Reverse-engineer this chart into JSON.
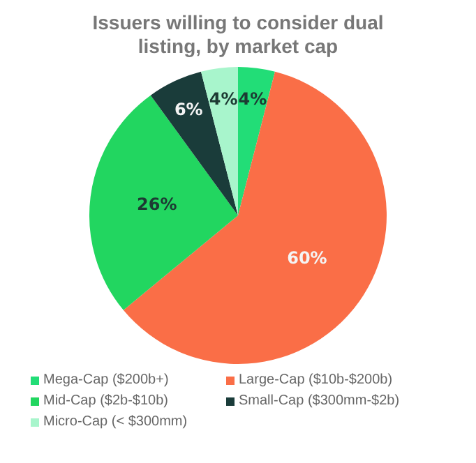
{
  "chart_data": {
    "type": "pie",
    "title": "Issuers willing to consider dual listing, by market cap",
    "categories": [
      "Mega-Cap ($200b+)",
      "Large-Cap ($10b-$200b)",
      "Mid-Cap ($2b-$10b)",
      "Small-Cap ($300mm-$2b)",
      "Micro-Cap (< $300mm)"
    ],
    "values": [
      4,
      60,
      26,
      6,
      4
    ],
    "colors": [
      "#22dd77",
      "#fa6e47",
      "#22d660",
      "#1a3c3a",
      "#a8f5cc"
    ],
    "value_labels": [
      "4%",
      "60%",
      "26%",
      "6%",
      "4%"
    ],
    "legend": "bottom"
  }
}
